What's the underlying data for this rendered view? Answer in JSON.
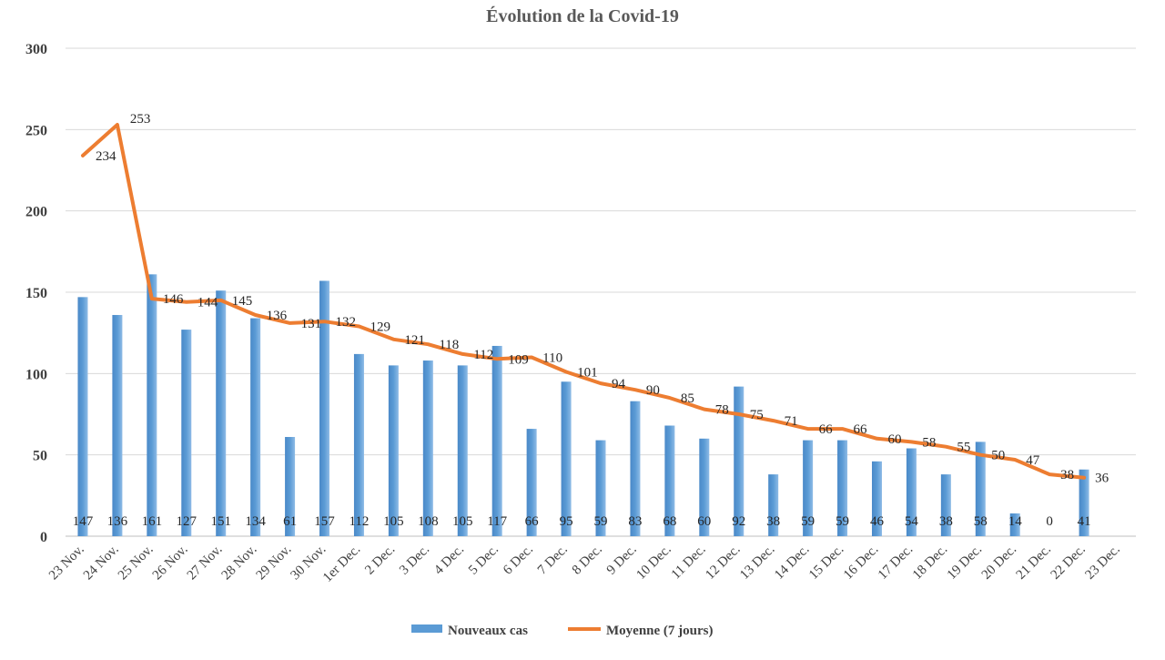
{
  "chart_data": {
    "type": "bar",
    "title": "Évolution de la Covid-19",
    "xlabel": "",
    "ylabel": "",
    "ylim": [
      0,
      300
    ],
    "yticks": [
      0,
      50,
      100,
      150,
      200,
      250,
      300
    ],
    "grid": true,
    "legend_position": "bottom",
    "categories": [
      "23 Nov.",
      "24 Nov.",
      "25 Nov.",
      "26 Nov.",
      "27 Nov.",
      "28 Nov.",
      "29 Nov.",
      "30 Nov.",
      "1er Dec.",
      "2 Dec.",
      "3 Dec.",
      "4 Dec.",
      "5 Dec.",
      "6 Dec.",
      "7 Dec.",
      "8 Dec.",
      "9 Dec.",
      "10 Dec.",
      "11 Dec.",
      "12 Dec.",
      "13 Dec.",
      "14 Dec.",
      "15 Dec.",
      "16 Dec.",
      "17 Dec.",
      "18 Dec.",
      "19 Dec.",
      "20 Dec.",
      "21 Dec.",
      "22 Dec.",
      "23 Dec."
    ],
    "series": [
      {
        "name": "Nouveaux cas",
        "type": "bar",
        "color": "#5b9bd5",
        "values": [
          147,
          136,
          161,
          127,
          151,
          134,
          61,
          157,
          112,
          105,
          108,
          105,
          117,
          66,
          95,
          59,
          83,
          68,
          60,
          92,
          38,
          59,
          59,
          46,
          54,
          38,
          58,
          14,
          0,
          41,
          null
        ]
      },
      {
        "name": "Moyenne (7 jours)",
        "type": "line",
        "color": "#ed7d31",
        "values": [
          234,
          253,
          146,
          144,
          145,
          136,
          131,
          132,
          129,
          121,
          118,
          112,
          109,
          110,
          101,
          94,
          90,
          85,
          78,
          75,
          71,
          66,
          66,
          60,
          58,
          55,
          50,
          47,
          38,
          36,
          null
        ]
      }
    ]
  }
}
